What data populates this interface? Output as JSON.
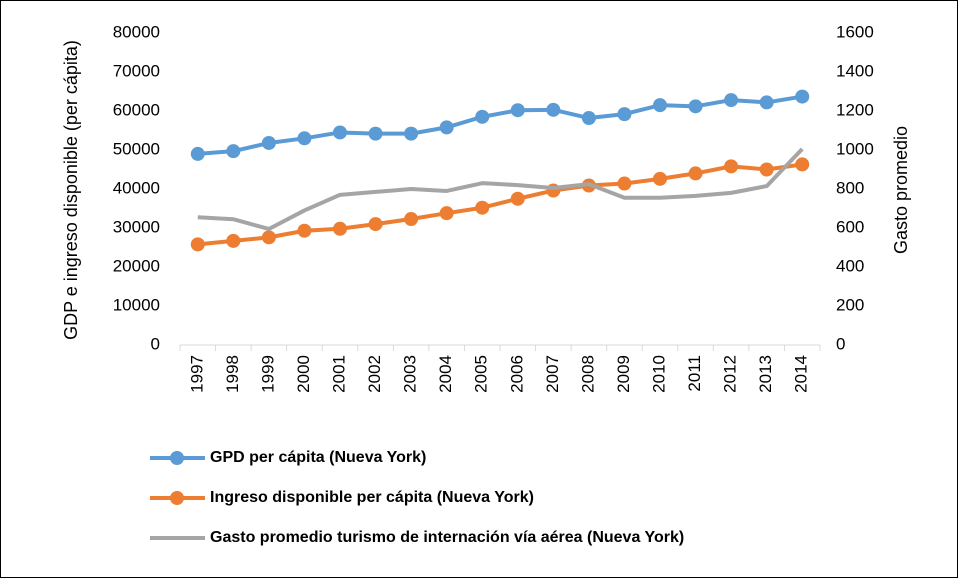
{
  "chart_data": {
    "type": "line",
    "categories": [
      "1997",
      "1998",
      "1999",
      "2000",
      "2001",
      "2002",
      "2003",
      "2004",
      "2005",
      "2006",
      "2007",
      "2008",
      "2009",
      "2010",
      "2011",
      "2012",
      "2013",
      "2014"
    ],
    "y_label": "GDP e ingreso disponible (per cápita)",
    "y2_label": "Gasto promedio",
    "ylim": [
      0,
      80000
    ],
    "yticks": [
      0,
      10000,
      20000,
      30000,
      40000,
      50000,
      60000,
      70000,
      80000
    ],
    "y2lim": [
      0,
      1600
    ],
    "y2ticks": [
      0,
      200,
      400,
      600,
      800,
      1000,
      1200,
      1400,
      1600
    ],
    "legend": "bottom",
    "series": [
      {
        "name": "GPD per cápita (Nueva York)",
        "color": "#5b9bd5",
        "marker": true,
        "values": [
          49000,
          49700,
          51800,
          53000,
          54500,
          54200,
          54200,
          55800,
          58500,
          60200,
          60300,
          58200,
          59200,
          61500,
          61200,
          62800,
          62200,
          63700
        ]
      },
      {
        "name": "Ingreso disponible per cápita (Nueva York)",
        "color": "#ed7d31",
        "marker": true,
        "values": [
          25800,
          26700,
          27600,
          29300,
          29800,
          31000,
          32300,
          33800,
          35200,
          37500,
          39600,
          40900,
          41400,
          42600,
          44000,
          45800,
          45000,
          46300
        ]
      },
      {
        "name": "Gasto promedio turismo de internación vía aérea (Nueva York)",
        "color": "#a5a5a5",
        "marker": false,
        "axis": "y2",
        "values": [
          655,
          645,
          595,
          690,
          770,
          785,
          800,
          790,
          830,
          820,
          805,
          825,
          755,
          755,
          765,
          780,
          815,
          1005
        ]
      }
    ]
  }
}
